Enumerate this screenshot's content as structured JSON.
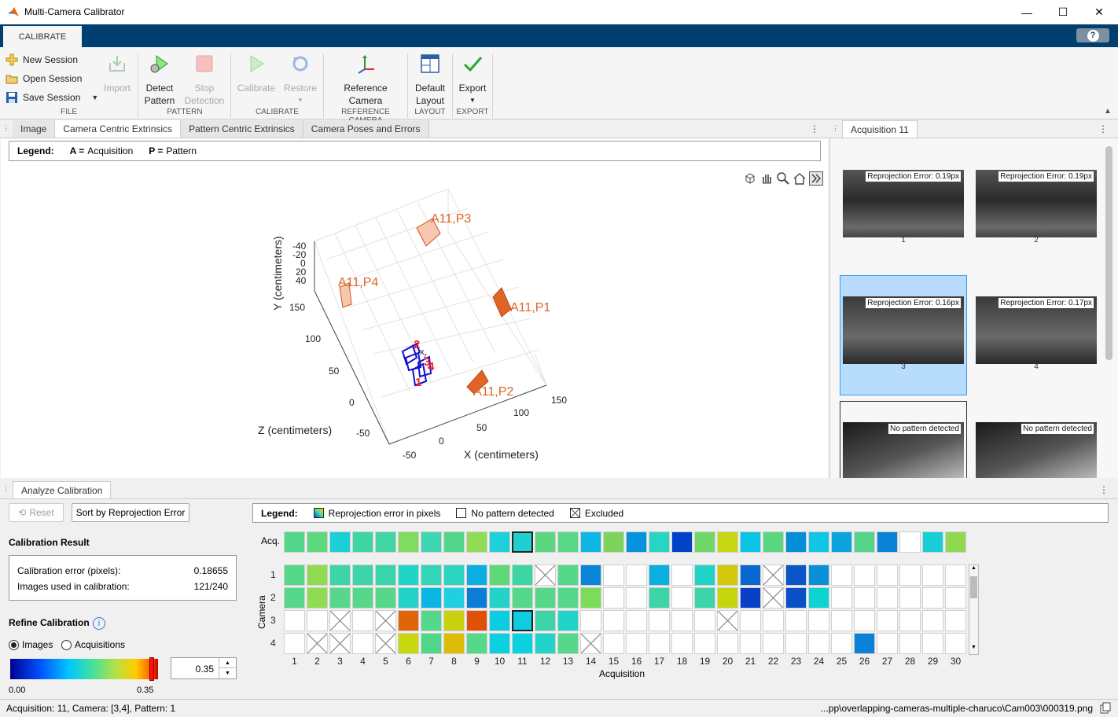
{
  "app": {
    "title": "Multi-Camera Calibrator",
    "tab": "CALIBRATE",
    "help": "?"
  },
  "window": {
    "minimize": "—",
    "maximize": "☐",
    "close": "✕"
  },
  "toolstrip": {
    "file": {
      "new_session": "New Session",
      "open_session": "Open Session",
      "save_session": "Save Session",
      "import": "Import",
      "label": "FILE"
    },
    "pattern": {
      "detect_line1": "Detect",
      "detect_line2": "Pattern",
      "stop_line1": "Stop",
      "stop_line2": "Detection",
      "label": "PATTERN"
    },
    "calibrate": {
      "calibrate": "Calibrate",
      "restore": "Restore",
      "label": "CALIBRATE"
    },
    "reference": {
      "line1": "Reference",
      "line2": "Camera",
      "label": "REFERENCE CAMERA"
    },
    "layout": {
      "line1": "Default",
      "line2": "Layout",
      "label": "LAYOUT"
    },
    "export": {
      "export": "Export",
      "label": "EXPORT"
    }
  },
  "doc_tabs": [
    "Image",
    "Camera Centric Extrinsics",
    "Pattern Centric Extrinsics",
    "Camera Poses and Errors"
  ],
  "legend_top": {
    "label": "Legend:",
    "a_key": "A =",
    "a_val": "Acquisition",
    "p_key": "P =",
    "p_val": "Pattern"
  },
  "plot3d": {
    "ylabel": "Y (centimeters)",
    "zlabel": "Z (centimeters)",
    "xlabel": "X (centimeters)",
    "y_ticks": [
      "-40",
      "-20",
      "0",
      "20",
      "40"
    ],
    "z_ticks": [
      "150",
      "100",
      "50",
      "0",
      "-50"
    ],
    "x_ticks": [
      "-50",
      "0",
      "50",
      "100",
      "150"
    ],
    "patterns": [
      "A11,P3",
      "A11,P4",
      "A11,P1",
      "A11,P2"
    ],
    "cam_labels": [
      "2",
      "3",
      "4",
      "1"
    ],
    "axis_letters": [
      "x",
      "z"
    ],
    "pattern_color": "#e0642a",
    "camera_color": "#1010d0"
  },
  "right_panel": {
    "tab": "Acquisition 11",
    "thumbs": [
      {
        "tag": "Reprojection Error: 0.19px",
        "num": "1"
      },
      {
        "tag": "Reprojection Error: 0.19px",
        "num": "2"
      },
      {
        "tag": "Reprojection Error: 0.16px",
        "num": "3"
      },
      {
        "tag": "Reprojection Error: 0.17px",
        "num": "4"
      },
      {
        "tag": "No pattern detected",
        "num": ""
      },
      {
        "tag": "No pattern detected",
        "num": ""
      }
    ]
  },
  "analyze": {
    "tab": "Analyze Calibration",
    "reset": "Reset",
    "sort": "Sort by Reprojection Error",
    "result_title": "Calibration Result",
    "error_label": "Calibration error (pixels):",
    "error_value": "0.18655",
    "images_label": "Images used in calibration:",
    "images_value": "121/240",
    "refine_title": "Refine Calibration",
    "radio_images": "Images",
    "radio_acq": "Acquisitions",
    "cb_min": "0.00",
    "cb_max": "0.35",
    "threshold": "0.35",
    "legend": {
      "label": "Legend:",
      "reproj": "Reprojection error in pixels",
      "nopattern": "No pattern detected",
      "excluded": "Excluded"
    },
    "acq_label": "Acq.",
    "camera_label": "Camera",
    "acq_axis_label": "Acquisition",
    "row_labels": [
      "1",
      "2",
      "3",
      "4"
    ],
    "col_labels": [
      "1",
      "2",
      "3",
      "4",
      "5",
      "6",
      "7",
      "8",
      "9",
      "10",
      "11",
      "12",
      "13",
      "14",
      "15",
      "16",
      "17",
      "18",
      "19",
      "20",
      "21",
      "22",
      "23",
      "24",
      "25",
      "26",
      "27",
      "28",
      "29",
      "30"
    ],
    "acq_row": [
      "#53d68a",
      "#5cd97c",
      "#1ad0d6",
      "#3dd5a4",
      "#40d5a3",
      "#7fdc5e",
      "#3dd6b0",
      "#53d68c",
      "#90dc55",
      "#1fcfd9",
      "#20cfcf",
      "#5bd780",
      "#5ad788",
      "#0fb6e2",
      "#7ed45a",
      "#0593dc",
      "#28d5c3",
      "#0043c8",
      "#6fd869",
      "#c9d613",
      "#0bc3e4",
      "#5ad67e",
      "#058fd6",
      "#10c6e4",
      "#0da3dc",
      "#57d48c",
      "#0a82d8",
      "#ffffff",
      "#19cfd6",
      "#8fd84f"
    ],
    "grid": [
      [
        "#56d88a",
        "#8fdc50",
        "#3dd5a8",
        "#3dd5a8",
        "#38d5a9",
        "#22d3c7",
        "#32d4ba",
        "#2ad4c1",
        "#0aaee0",
        "#60d87a",
        "#3dd5a4",
        "X",
        "#56d88a",
        "#0a86d8",
        "W",
        "W",
        "#0aaee0",
        "W",
        "#21d3c7",
        "#d1c90a",
        "#0a66d0",
        "X",
        "#0a55c8",
        "#0a90d8",
        "W",
        "W",
        "W",
        "W",
        "W",
        "W"
      ],
      [
        "#56d88a",
        "#8fdc50",
        "#56d88a",
        "#56d88a",
        "#56d88a",
        "#22d3c7",
        "#0ab6e3",
        "#20cfe0",
        "#0a7ed6",
        "#22d3c7",
        "#56d88a",
        "#56d88a",
        "#56d88a",
        "#7cdc5a",
        "W",
        "W",
        "#3dd5a8",
        "W",
        "#3dd5a8",
        "#c7d50f",
        "#0a40c8",
        "X",
        "#0a4ec8",
        "#0dd4d0",
        "W",
        "W",
        "W",
        "W",
        "W",
        "W"
      ],
      [
        "W",
        "W",
        "X",
        "W",
        "X",
        "#e0640a",
        "#56d88a",
        "#c8d00f",
        "#e05008",
        "#0bcce0",
        "#10cce0",
        "#3dd5a8",
        "#22d3c7",
        "W",
        "W",
        "W",
        "W",
        "W",
        "W",
        "X",
        "W",
        "W",
        "W",
        "W",
        "W",
        "W",
        "W",
        "W",
        "W",
        "W"
      ],
      [
        "W",
        "X",
        "X",
        "W",
        "X",
        "#c8d80f",
        "#50d68a",
        "#dcbc06",
        "#56d88a",
        "#0bd0e0",
        "#0bd0e0",
        "#22d3c7",
        "#56d88a",
        "X",
        "W",
        "W",
        "W",
        "W",
        "W",
        "W",
        "W",
        "W",
        "W",
        "W",
        "W",
        "#0a80d8",
        "W",
        "W",
        "W",
        "W"
      ]
    ]
  },
  "status": {
    "left": "Acquisition: 11, Camera: [3,4], Pattern: 1",
    "right": "...pp\\overlapping-cameras-multiple-charuco\\Cam003\\000319.png"
  }
}
